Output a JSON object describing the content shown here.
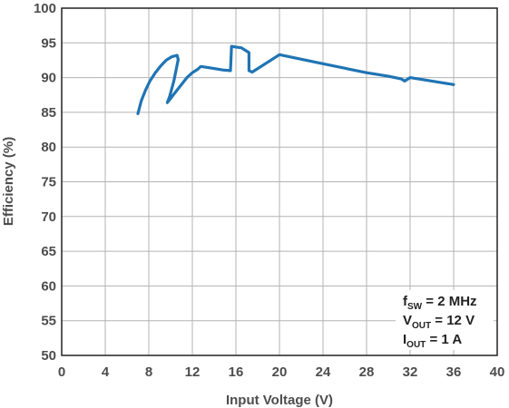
{
  "chart_data": {
    "type": "line",
    "xlabel": "Input Voltage (V)",
    "ylabel": "Efficiency (%)",
    "xlim": [
      0,
      40
    ],
    "ylim": [
      50,
      100
    ],
    "x_ticks": [
      0,
      4,
      8,
      12,
      16,
      20,
      24,
      28,
      32,
      36,
      40
    ],
    "y_ticks": [
      50,
      55,
      60,
      65,
      70,
      75,
      80,
      85,
      90,
      95,
      100
    ],
    "grid": true,
    "line_color": "#1f74b4",
    "annotation": [
      {
        "main": "f",
        "sub": "SW",
        "rest": " = 2 MHz"
      },
      {
        "main": "V",
        "sub": "OUT",
        "rest": " = 12 V"
      },
      {
        "main": "I",
        "sub": "OUT",
        "rest": " = 1 A"
      }
    ],
    "series": [
      {
        "x": [
          7.0,
          7.3,
          7.7,
          8.1,
          8.6,
          9.1,
          9.6,
          10.1,
          10.6,
          10.7,
          10.3,
          9.9,
          9.7,
          10.0,
          10.5,
          11.0,
          11.5,
          12.0,
          12.5,
          12.7,
          12.8,
          13.2,
          14.0,
          14.8,
          15.5,
          15.6,
          16.0,
          16.5,
          16.6,
          16.8,
          17.2,
          17.2,
          17.5,
          20,
          24,
          28,
          30,
          31.2,
          31.5,
          32,
          36
        ],
        "y": [
          84.8,
          86.6,
          88.2,
          89.5,
          90.7,
          91.7,
          92.5,
          93.0,
          93.2,
          92.6,
          89.5,
          87.2,
          86.4,
          87.0,
          88.0,
          89.0,
          90.0,
          90.7,
          91.2,
          91.5,
          91.6,
          91.5,
          91.3,
          91.1,
          91.0,
          94.5,
          94.4,
          94.3,
          94.2,
          94.0,
          93.6,
          91.0,
          90.8,
          93.3,
          92.0,
          90.7,
          90.2,
          89.8,
          89.5,
          90.0,
          89.0
        ]
      }
    ]
  }
}
